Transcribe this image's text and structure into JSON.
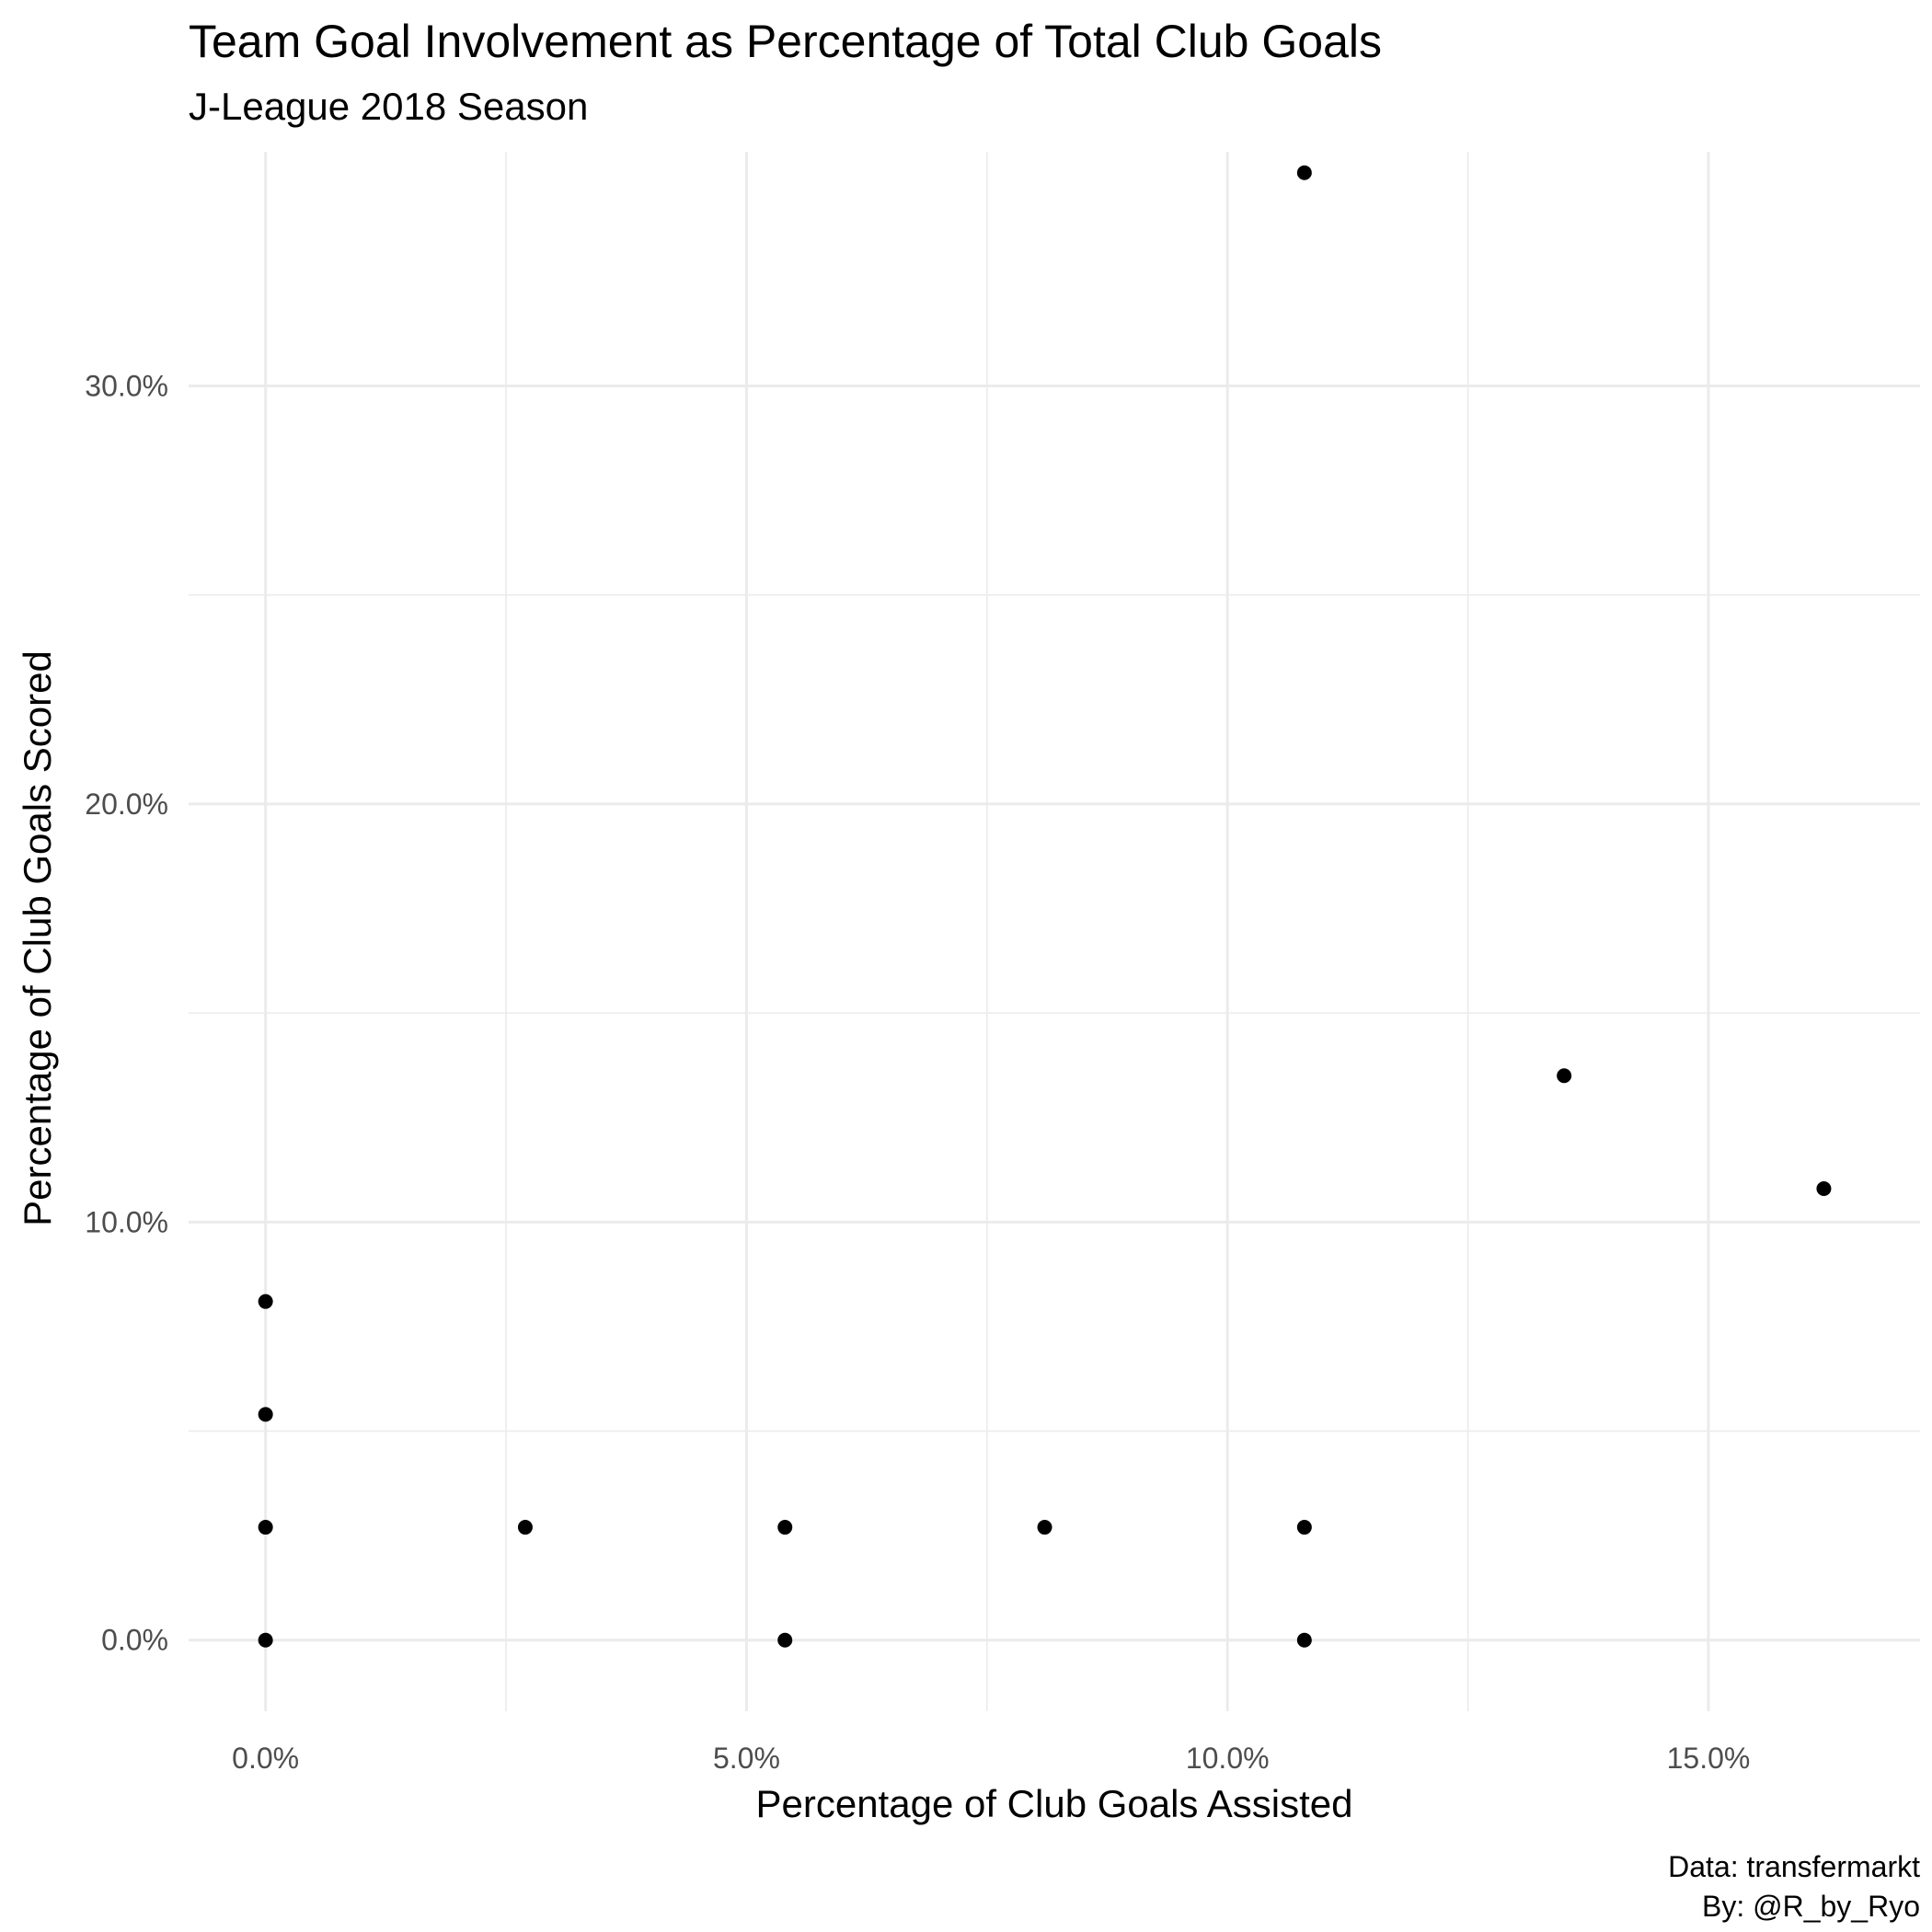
{
  "chart_data": {
    "type": "scatter",
    "title": "Team Goal Involvement as Percentage of Total Club Goals",
    "subtitle": "J-League 2018 Season",
    "xlabel": "Percentage of Club Goals Assisted",
    "ylabel": "Percentage of Club Goals Scored",
    "caption": [
      "Data: transfermarkt",
      "By: @R_by_Ryo"
    ],
    "xlim": [
      -0.8,
      17.2
    ],
    "ylim": [
      -1.7,
      35.6
    ],
    "x_major_ticks": [
      0,
      5,
      10,
      15
    ],
    "x_minor_ticks": [
      2.5,
      7.5,
      12.5
    ],
    "y_major_ticks": [
      0,
      10,
      20,
      30
    ],
    "y_minor_ticks": [
      5,
      15,
      25
    ],
    "x_tick_labels": [
      "0.0%",
      "5.0%",
      "10.0%",
      "15.0%"
    ],
    "y_tick_labels": [
      "0.0%",
      "10.0%",
      "20.0%",
      "30.0%"
    ],
    "grid": true,
    "point_color": "#000000",
    "points": [
      {
        "x": 0.0,
        "y": 0.0
      },
      {
        "x": 0.0,
        "y": 2.7
      },
      {
        "x": 0.0,
        "y": 5.4
      },
      {
        "x": 0.0,
        "y": 8.1
      },
      {
        "x": 2.7,
        "y": 2.7
      },
      {
        "x": 5.4,
        "y": 2.7
      },
      {
        "x": 5.4,
        "y": 0.0
      },
      {
        "x": 8.1,
        "y": 2.7
      },
      {
        "x": 10.8,
        "y": 2.7
      },
      {
        "x": 10.8,
        "y": 0.0
      },
      {
        "x": 10.8,
        "y": 35.1
      },
      {
        "x": 13.5,
        "y": 13.5
      },
      {
        "x": 16.2,
        "y": 10.8
      }
    ]
  }
}
